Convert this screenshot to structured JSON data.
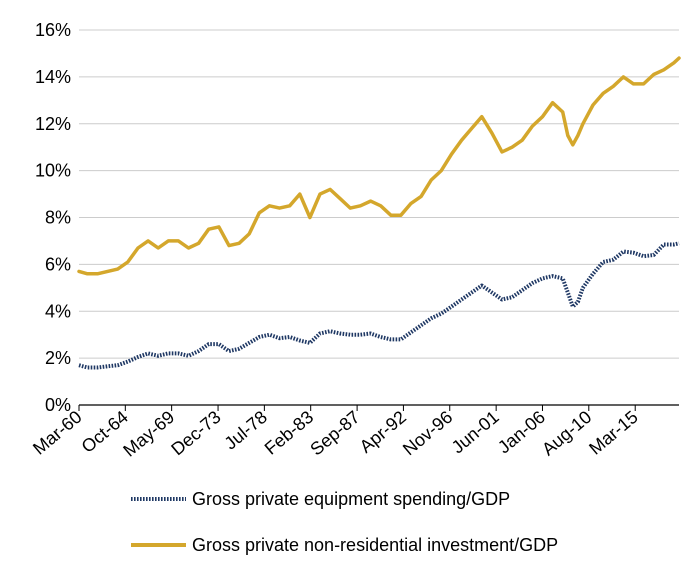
{
  "chart_data": {
    "type": "line",
    "title": "",
    "xlabel": "",
    "ylabel": "",
    "ylim": [
      0,
      16
    ],
    "y_ticks": [
      "0%",
      "2%",
      "4%",
      "6%",
      "8%",
      "10%",
      "12%",
      "14%",
      "16%"
    ],
    "y_tick_values": [
      0,
      2,
      4,
      6,
      8,
      10,
      12,
      14,
      16
    ],
    "x_range": [
      1960.17,
      2019.5
    ],
    "x_ticks": [
      {
        "label": "Mar-60",
        "x": 1960.17
      },
      {
        "label": "Oct-64",
        "x": 1964.75
      },
      {
        "label": "May-69",
        "x": 1969.33
      },
      {
        "label": "Dec-73",
        "x": 1973.92
      },
      {
        "label": "Jul-78",
        "x": 1978.5
      },
      {
        "label": "Feb-83",
        "x": 1983.08
      },
      {
        "label": "Sep-87",
        "x": 1987.67
      },
      {
        "label": "Apr-92",
        "x": 1992.25
      },
      {
        "label": "Nov-96",
        "x": 1996.83
      },
      {
        "label": "Jun-01",
        "x": 2001.42
      },
      {
        "label": "Jan-06",
        "x": 2006.0
      },
      {
        "label": "Aug-10",
        "x": 2010.58
      },
      {
        "label": "Mar-15",
        "x": 2015.17
      }
    ],
    "grid": true,
    "legend_position": "bottom",
    "series": [
      {
        "name": "Gross private equipment spending/GDP",
        "color": "#1f3864",
        "style": "dotted-thick",
        "x": [
          1960.17,
          1961.0,
          1962.0,
          1963.0,
          1964.0,
          1965.0,
          1966.0,
          1967.0,
          1968.0,
          1969.0,
          1970.0,
          1971.0,
          1972.0,
          1973.0,
          1974.0,
          1975.0,
          1976.0,
          1977.0,
          1978.0,
          1979.0,
          1980.0,
          1981.0,
          1982.0,
          1983.0,
          1984.0,
          1985.0,
          1986.0,
          1987.0,
          1988.0,
          1989.0,
          1990.0,
          1991.0,
          1992.0,
          1993.0,
          1994.0,
          1995.0,
          1996.0,
          1997.0,
          1998.0,
          1999.0,
          2000.0,
          2001.0,
          2002.0,
          2003.0,
          2004.0,
          2005.0,
          2006.0,
          2007.0,
          2008.0,
          2008.5,
          2009.0,
          2009.5,
          2010.0,
          2011.0,
          2012.0,
          2013.0,
          2014.0,
          2015.0,
          2016.0,
          2017.0,
          2018.0,
          2019.0,
          2019.5
        ],
        "values": [
          1.7,
          1.6,
          1.6,
          1.65,
          1.7,
          1.85,
          2.05,
          2.2,
          2.1,
          2.2,
          2.2,
          2.1,
          2.3,
          2.6,
          2.6,
          2.3,
          2.4,
          2.65,
          2.9,
          3.0,
          2.85,
          2.9,
          2.75,
          2.65,
          3.05,
          3.15,
          3.05,
          3.0,
          3.0,
          3.05,
          2.9,
          2.8,
          2.8,
          3.1,
          3.4,
          3.7,
          3.9,
          4.2,
          4.5,
          4.8,
          5.1,
          4.8,
          4.5,
          4.6,
          4.9,
          5.2,
          5.4,
          5.5,
          5.4,
          4.8,
          4.2,
          4.4,
          5.0,
          5.6,
          6.1,
          6.2,
          6.55,
          6.5,
          6.35,
          6.4,
          6.85,
          6.85,
          6.9
        ]
      },
      {
        "name": "Gross private non-residential investment/GDP",
        "color": "#d4a72c",
        "style": "solid",
        "x": [
          1960.17,
          1961.0,
          1962.0,
          1963.0,
          1964.0,
          1965.0,
          1966.0,
          1967.0,
          1968.0,
          1969.0,
          1970.0,
          1971.0,
          1972.0,
          1973.0,
          1974.0,
          1975.0,
          1976.0,
          1977.0,
          1978.0,
          1979.0,
          1980.0,
          1981.0,
          1982.0,
          1983.0,
          1984.0,
          1985.0,
          1986.0,
          1987.0,
          1988.0,
          1989.0,
          1990.0,
          1991.0,
          1992.0,
          1993.0,
          1994.0,
          1995.0,
          1996.0,
          1997.0,
          1998.0,
          1999.0,
          2000.0,
          2001.0,
          2002.0,
          2003.0,
          2004.0,
          2005.0,
          2006.0,
          2007.0,
          2008.0,
          2008.5,
          2009.0,
          2009.5,
          2010.0,
          2011.0,
          2012.0,
          2013.0,
          2014.0,
          2015.0,
          2016.0,
          2017.0,
          2018.0,
          2019.0,
          2019.5
        ],
        "values": [
          5.7,
          5.6,
          5.6,
          5.7,
          5.8,
          6.1,
          6.7,
          7.0,
          6.7,
          7.0,
          7.0,
          6.7,
          6.9,
          7.5,
          7.6,
          6.8,
          6.9,
          7.3,
          8.2,
          8.5,
          8.4,
          8.5,
          9.0,
          8.0,
          9.0,
          9.2,
          8.8,
          8.4,
          8.5,
          8.7,
          8.5,
          8.1,
          8.1,
          8.6,
          8.9,
          9.6,
          10.0,
          10.7,
          11.3,
          11.8,
          12.3,
          11.6,
          10.8,
          11.0,
          11.3,
          11.9,
          12.3,
          12.9,
          12.5,
          11.5,
          11.1,
          11.5,
          12.0,
          12.8,
          13.3,
          13.6,
          14.0,
          13.7,
          13.7,
          14.1,
          14.3,
          14.6,
          14.8
        ]
      }
    ]
  }
}
